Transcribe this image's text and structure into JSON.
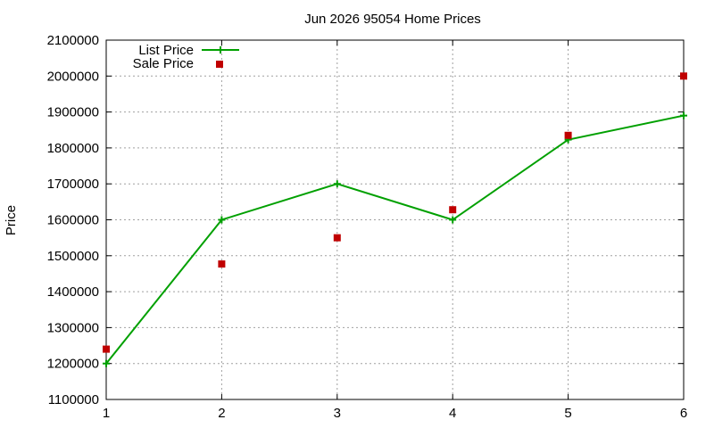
{
  "chart_data": {
    "type": "line",
    "title": "Jun 2026 95054 Home Prices",
    "xlabel": "",
    "ylabel": "Price",
    "x": [
      1,
      2,
      3,
      4,
      5,
      6
    ],
    "xlim": [
      1,
      6
    ],
    "ylim": [
      1100000,
      2100000
    ],
    "xticks": [
      "1",
      "2",
      "3",
      "4",
      "5",
      "6"
    ],
    "yticks": [
      "1100000",
      "1200000",
      "1300000",
      "1400000",
      "1500000",
      "1600000",
      "1700000",
      "1800000",
      "1900000",
      "2000000",
      "2100000"
    ],
    "grid": true,
    "legend": "top-left",
    "series": [
      {
        "name": "List Price",
        "style": "line-with-plus-markers",
        "color": "#00a000",
        "values": [
          1200000,
          1600000,
          1700000,
          1600000,
          1823000,
          1890000
        ]
      },
      {
        "name": "Sale Price",
        "style": "square-markers",
        "color": "#c00000",
        "values": [
          1240000,
          1477000,
          1550000,
          1628000,
          1835000,
          2000000
        ]
      }
    ]
  }
}
